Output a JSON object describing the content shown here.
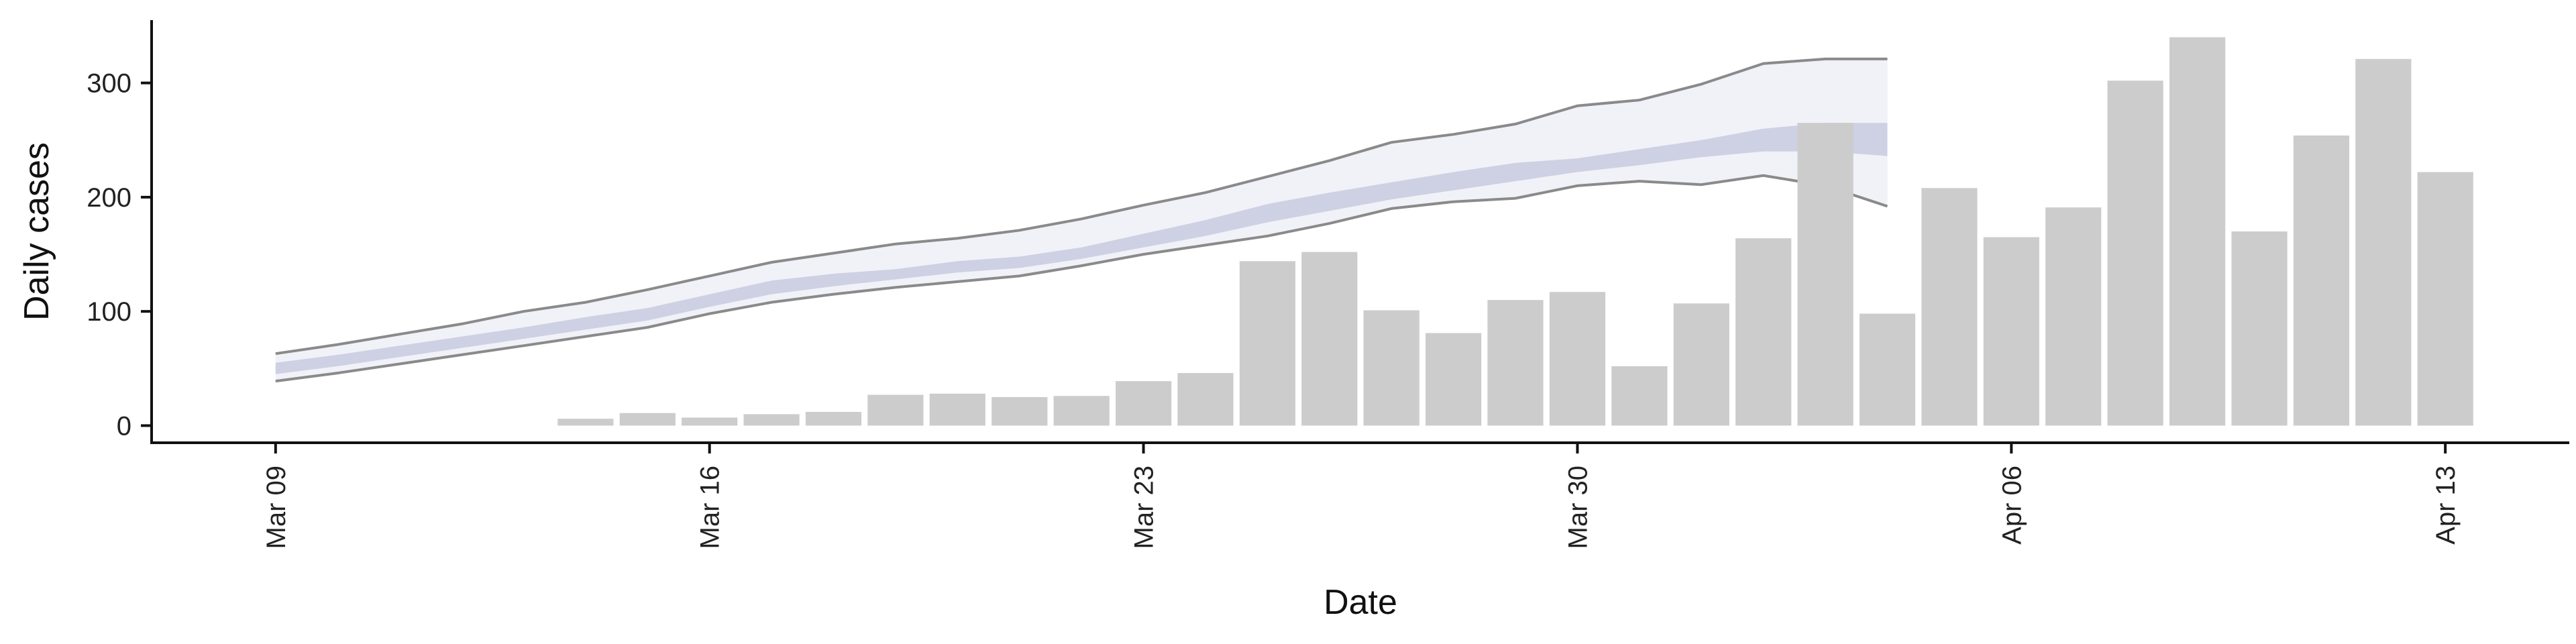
{
  "chart_data": {
    "type": "bar",
    "title": "",
    "xlabel": "Date",
    "ylabel": "Daily cases",
    "xlim": [
      "2020-03-07",
      "2020-04-15"
    ],
    "ylim": [
      -15,
      355
    ],
    "x_ticks": [
      "Mar 09",
      "Mar 16",
      "Mar 23",
      "Mar 30",
      "Apr 06",
      "Apr 13"
    ],
    "x_tick_dates": [
      "2020-03-09",
      "2020-03-16",
      "2020-03-23",
      "2020-03-30",
      "2020-04-06",
      "2020-04-13"
    ],
    "y_ticks": [
      0,
      100,
      200,
      300
    ],
    "grid": false,
    "series": [
      {
        "type": "bar",
        "color": "#cccccc",
        "dates": [
          "2020-03-14",
          "2020-03-15",
          "2020-03-16",
          "2020-03-17",
          "2020-03-18",
          "2020-03-19",
          "2020-03-20",
          "2020-03-21",
          "2020-03-22",
          "2020-03-23",
          "2020-03-24",
          "2020-03-25",
          "2020-03-26",
          "2020-03-27",
          "2020-03-28",
          "2020-03-29",
          "2020-03-30",
          "2020-03-31",
          "2020-04-01",
          "2020-04-02",
          "2020-04-03",
          "2020-04-04",
          "2020-04-05",
          "2020-04-06",
          "2020-04-07",
          "2020-04-08",
          "2020-04-09",
          "2020-04-10",
          "2020-04-11",
          "2020-04-12",
          "2020-04-13"
        ],
        "values": [
          6,
          11,
          7,
          10,
          12,
          27,
          28,
          25,
          26,
          39,
          46,
          144,
          152,
          101,
          81,
          110,
          117,
          52,
          107,
          164,
          265,
          98,
          208,
          165,
          191,
          302,
          340,
          170,
          254,
          321,
          222
        ]
      },
      {
        "type": "ribbon",
        "color": "#9aa0c4",
        "dates": [
          "2020-03-09",
          "2020-03-10",
          "2020-03-11",
          "2020-03-12",
          "2020-03-13",
          "2020-03-14",
          "2020-03-15",
          "2020-03-16",
          "2020-03-17",
          "2020-03-18",
          "2020-03-19",
          "2020-03-20",
          "2020-03-21",
          "2020-03-22",
          "2020-03-23",
          "2020-03-24",
          "2020-03-25",
          "2020-03-26",
          "2020-03-27",
          "2020-03-28",
          "2020-03-29",
          "2020-03-30",
          "2020-03-31",
          "2020-04-01",
          "2020-04-02",
          "2020-04-03",
          "2020-04-04"
        ],
        "outer_upper": [
          63,
          71,
          80,
          89,
          100,
          108,
          119,
          131,
          143,
          151,
          159,
          164,
          171,
          181,
          193,
          204,
          218,
          232,
          248,
          255,
          264,
          280,
          285,
          299,
          317,
          321,
          321
        ],
        "outer_lower": [
          39,
          46,
          54,
          62,
          70,
          78,
          86,
          98,
          108,
          115,
          121,
          126,
          131,
          140,
          150,
          158,
          166,
          177,
          190,
          196,
          199,
          210,
          214,
          211,
          219,
          210,
          192
        ],
        "inner_upper": [
          55,
          62,
          70,
          78,
          86,
          95,
          103,
          115,
          127,
          133,
          137,
          144,
          148,
          156,
          168,
          180,
          194,
          204,
          213,
          222,
          230,
          234,
          242,
          250,
          260,
          265,
          265
        ],
        "inner_lower": [
          45,
          52,
          60,
          68,
          76,
          84,
          92,
          104,
          115,
          122,
          128,
          134,
          138,
          146,
          156,
          166,
          178,
          188,
          198,
          206,
          214,
          222,
          228,
          235,
          240,
          240,
          236
        ]
      }
    ]
  }
}
